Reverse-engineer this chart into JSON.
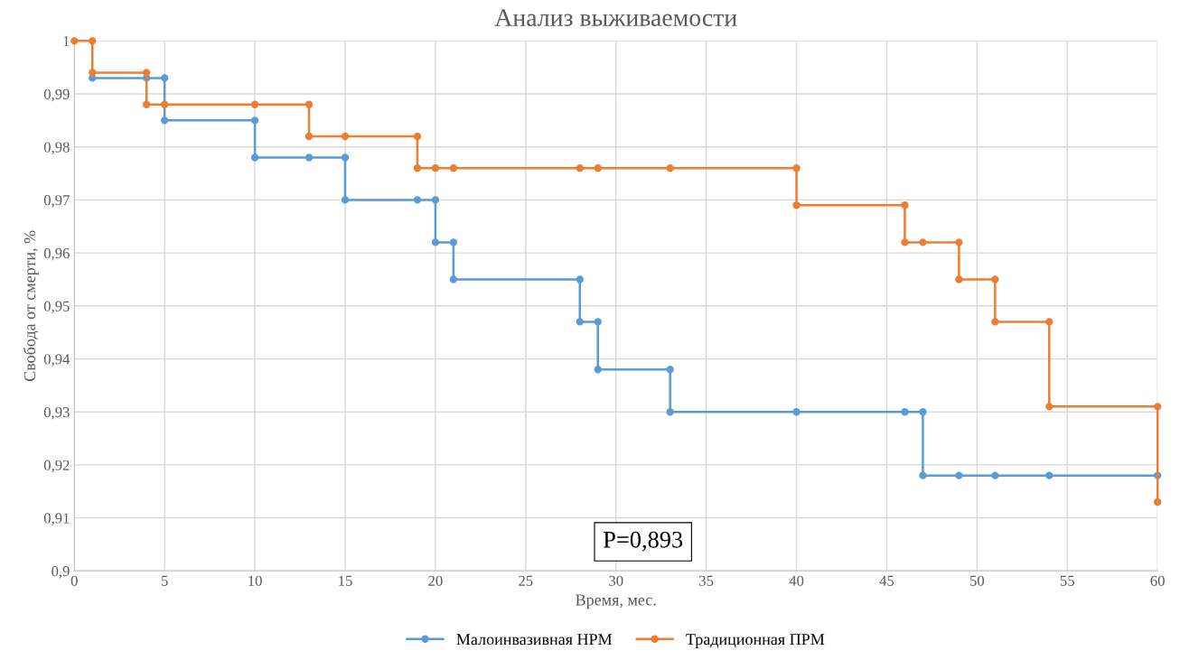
{
  "chart_data": {
    "type": "line",
    "title": "Анализ выживаемости",
    "xlabel": "Время, мес.",
    "ylabel": "Свобода от смерти, %",
    "xlim": [
      0,
      60
    ],
    "xticks": [
      0,
      5,
      10,
      15,
      20,
      25,
      30,
      35,
      40,
      45,
      50,
      55,
      60
    ],
    "ylim": [
      0.9,
      1
    ],
    "yticks": [
      {
        "value": 0.9,
        "label": "0,9"
      },
      {
        "value": 0.91,
        "label": "0,91"
      },
      {
        "value": 0.92,
        "label": "0,92"
      },
      {
        "value": 0.93,
        "label": "0,93"
      },
      {
        "value": 0.94,
        "label": "0,94"
      },
      {
        "value": 0.95,
        "label": "0,95"
      },
      {
        "value": 0.96,
        "label": "0,96"
      },
      {
        "value": 0.97,
        "label": "0,97"
      },
      {
        "value": 0.98,
        "label": "0,98"
      },
      {
        "value": 0.99,
        "label": "0,99"
      },
      {
        "value": 1,
        "label": "1"
      }
    ],
    "grid": true,
    "legend": "bottom",
    "marker": "circle",
    "line_style": "solid",
    "annotations": [
      "P=0,893"
    ],
    "series": [
      {
        "name": "Малоинвазивная НРМ",
        "color": "#5b9bd5",
        "x": [
          1,
          4,
          5,
          5,
          10,
          10,
          13,
          15,
          15,
          19,
          20,
          20,
          21,
          21,
          28,
          28,
          29,
          29,
          33,
          33,
          40,
          46,
          47,
          47,
          49,
          51,
          54,
          60
        ],
        "values": [
          0.993,
          0.993,
          0.993,
          0.985,
          0.985,
          0.978,
          0.978,
          0.978,
          0.97,
          0.97,
          0.97,
          0.962,
          0.962,
          0.955,
          0.955,
          0.947,
          0.947,
          0.938,
          0.938,
          0.93,
          0.93,
          0.93,
          0.93,
          0.918,
          0.918,
          0.918,
          0.918,
          0.918
        ]
      },
      {
        "name": "Традиционная ПРМ",
        "color": "#ed7d31",
        "x": [
          0,
          1,
          1,
          4,
          4,
          5,
          10,
          13,
          13,
          15,
          19,
          19,
          20,
          21,
          28,
          29,
          33,
          40,
          40,
          46,
          46,
          47,
          49,
          49,
          51,
          51,
          54,
          54,
          60,
          60
        ],
        "values": [
          1,
          1,
          0.994,
          0.994,
          0.988,
          0.988,
          0.988,
          0.988,
          0.982,
          0.982,
          0.982,
          0.976,
          0.976,
          0.976,
          0.976,
          0.976,
          0.976,
          0.976,
          0.969,
          0.969,
          0.962,
          0.962,
          0.962,
          0.955,
          0.955,
          0.947,
          0.947,
          0.931,
          0.931,
          0.913
        ]
      }
    ]
  }
}
